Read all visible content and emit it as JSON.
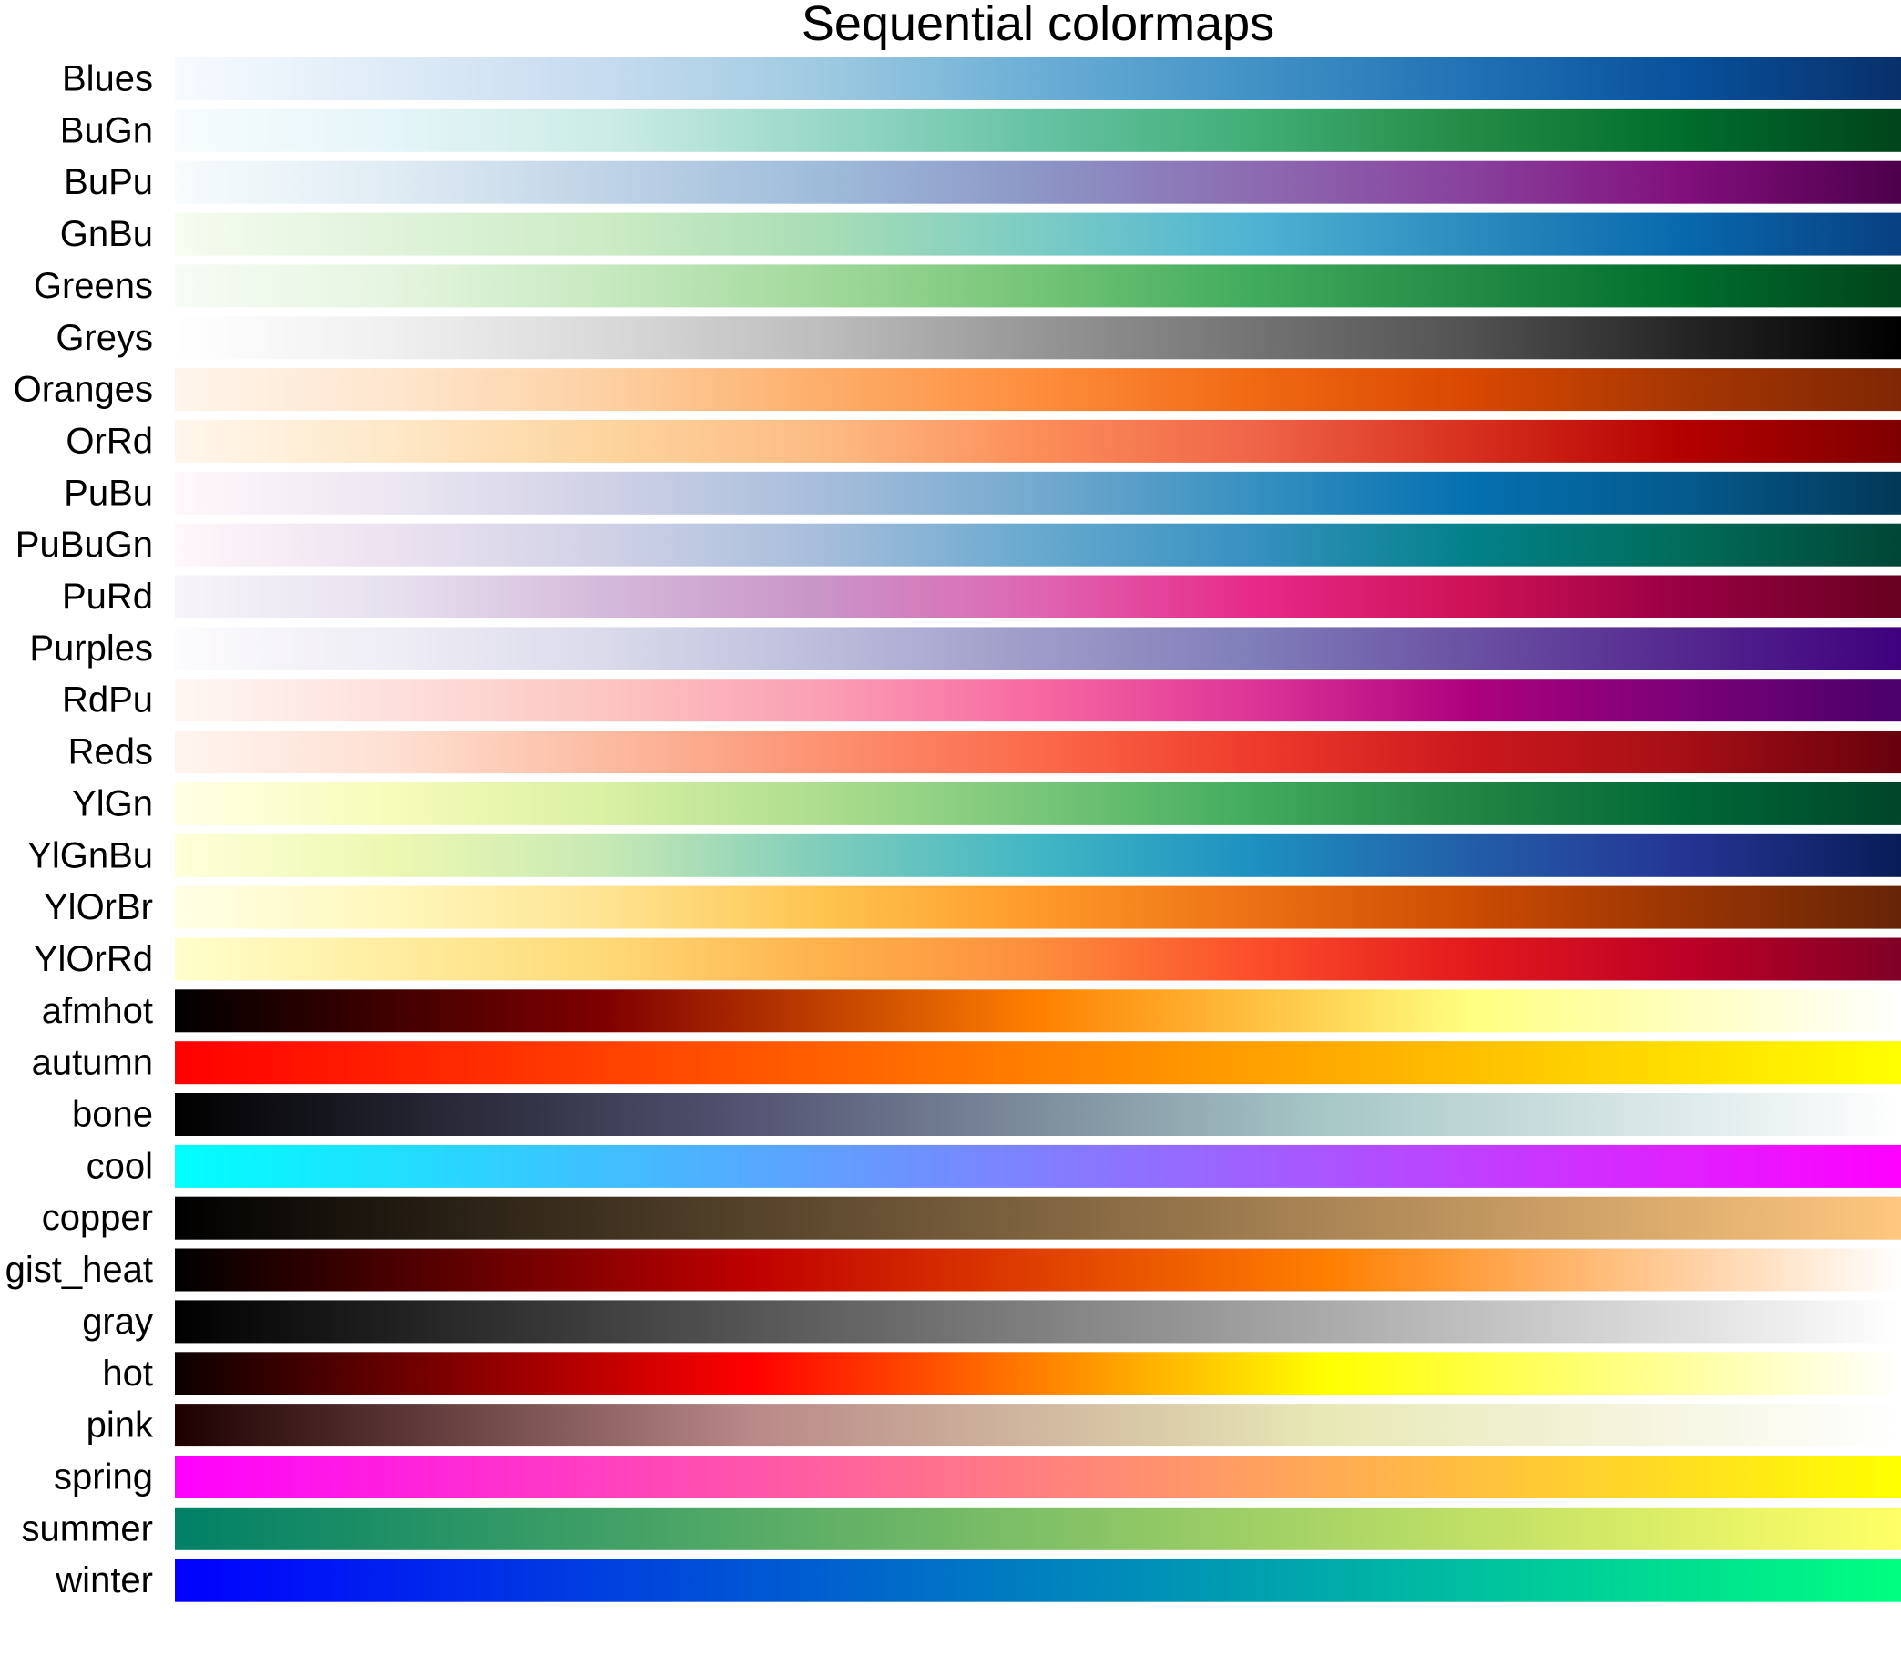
{
  "title": "Sequential colormaps",
  "chart_data": {
    "type": "heatmap",
    "title": "Sequential colormaps",
    "x_range": [
      0,
      1
    ],
    "orientation": "horizontal gradients, one row per colormap",
    "series": [
      {
        "name": "Blues",
        "stops": [
          "#f7fbff",
          "#deebf7",
          "#c6dbef",
          "#9ecae1",
          "#6baed6",
          "#4292c6",
          "#2171b5",
          "#08519c",
          "#08306b"
        ]
      },
      {
        "name": "BuGn",
        "stops": [
          "#f7fcfd",
          "#e5f5f9",
          "#ccece6",
          "#99d8c9",
          "#66c2a4",
          "#41ae76",
          "#238b45",
          "#006d2c",
          "#00441b"
        ]
      },
      {
        "name": "BuPu",
        "stops": [
          "#f7fcfd",
          "#e0ecf4",
          "#bfd3e6",
          "#9ebcda",
          "#8c96c6",
          "#8c6bb1",
          "#88419d",
          "#810f7c",
          "#4d004b"
        ]
      },
      {
        "name": "GnBu",
        "stops": [
          "#f7fcf0",
          "#e0f3db",
          "#ccebc5",
          "#a8ddb5",
          "#7bccc4",
          "#4eb3d3",
          "#2b8cbe",
          "#0868ac",
          "#084081"
        ]
      },
      {
        "name": "Greens",
        "stops": [
          "#f7fcf5",
          "#e5f5e0",
          "#c7e9c0",
          "#a1d99b",
          "#74c476",
          "#41ab5d",
          "#238b45",
          "#006d2c",
          "#00441b"
        ]
      },
      {
        "name": "Greys",
        "stops": [
          "#ffffff",
          "#f0f0f0",
          "#d9d9d9",
          "#bdbdbd",
          "#969696",
          "#737373",
          "#525252",
          "#252525",
          "#000000"
        ]
      },
      {
        "name": "Oranges",
        "stops": [
          "#fff5eb",
          "#fee6ce",
          "#fdd0a2",
          "#fdae6b",
          "#fd8d3c",
          "#f16913",
          "#d94801",
          "#a63603",
          "#7f2704"
        ]
      },
      {
        "name": "OrRd",
        "stops": [
          "#fff7ec",
          "#fee8c8",
          "#fdd49e",
          "#fdbb84",
          "#fc8d59",
          "#ef6548",
          "#d7301f",
          "#b30000",
          "#7f0000"
        ]
      },
      {
        "name": "PuBu",
        "stops": [
          "#fff7fb",
          "#ece7f2",
          "#d0d1e6",
          "#a6bddb",
          "#74a9cf",
          "#3690c0",
          "#0570b0",
          "#045a8d",
          "#023858"
        ]
      },
      {
        "name": "PuBuGn",
        "stops": [
          "#fff7fb",
          "#ece2f0",
          "#d0d1e6",
          "#a6bddb",
          "#67a9cf",
          "#3690c0",
          "#02818a",
          "#016c59",
          "#014636"
        ]
      },
      {
        "name": "PuRd",
        "stops": [
          "#f7f4f9",
          "#e7e1ef",
          "#d4b9da",
          "#c994c7",
          "#df65b0",
          "#e7298a",
          "#ce1256",
          "#980043",
          "#67001f"
        ]
      },
      {
        "name": "Purples",
        "stops": [
          "#fcfbfd",
          "#efedf5",
          "#dadaeb",
          "#bcbddc",
          "#9e9ac8",
          "#807dba",
          "#6a51a3",
          "#54278f",
          "#3f007d"
        ]
      },
      {
        "name": "RdPu",
        "stops": [
          "#fff7f3",
          "#fde0dd",
          "#fcc5c0",
          "#fa9fb5",
          "#f768a1",
          "#dd3497",
          "#ae017e",
          "#7a0177",
          "#49006a"
        ]
      },
      {
        "name": "Reds",
        "stops": [
          "#fff5f0",
          "#fee0d2",
          "#fcbba1",
          "#fc9272",
          "#fb6a4a",
          "#ef3b2c",
          "#cb181d",
          "#a50f15",
          "#67000d"
        ]
      },
      {
        "name": "YlGn",
        "stops": [
          "#ffffe5",
          "#f7fcb9",
          "#d9f0a3",
          "#addd8e",
          "#78c679",
          "#41ab5d",
          "#238443",
          "#006837",
          "#004529"
        ]
      },
      {
        "name": "YlGnBu",
        "stops": [
          "#ffffd9",
          "#edf8b1",
          "#c7e9b4",
          "#7fcdbb",
          "#41b6c4",
          "#1d91c0",
          "#225ea8",
          "#253494",
          "#081d58"
        ]
      },
      {
        "name": "YlOrBr",
        "stops": [
          "#ffffe5",
          "#fff7bc",
          "#fee391",
          "#fec44f",
          "#fe9929",
          "#ec7014",
          "#cc4c02",
          "#993404",
          "#662506"
        ]
      },
      {
        "name": "YlOrRd",
        "stops": [
          "#ffffcc",
          "#ffeda0",
          "#fed976",
          "#feb24c",
          "#fd8d3c",
          "#fc4e2a",
          "#e31a1c",
          "#bd0026",
          "#800026"
        ]
      },
      {
        "name": "afmhot",
        "stops": [
          "#000000",
          "#800000",
          "#ff8000",
          "#ffff80",
          "#ffffff"
        ]
      },
      {
        "name": "autumn",
        "stops": [
          "#ff0000",
          "#ffff00"
        ]
      },
      {
        "name": "bone",
        "stops": [
          "#000000",
          "#545474",
          "#a7c7c7",
          "#ffffff"
        ]
      },
      {
        "name": "cool",
        "stops": [
          "#00ffff",
          "#ff00ff"
        ]
      },
      {
        "name": "copper",
        "stops": [
          "#000000",
          "#ffc77f"
        ]
      },
      {
        "name": "gist_heat",
        "stops": [
          "#000000",
          "#bf0000",
          "#ff7f00",
          "#ffffff"
        ]
      },
      {
        "name": "gray",
        "stops": [
          "#000000",
          "#ffffff"
        ]
      },
      {
        "name": "hot",
        "stops": [
          "#0b0000",
          "#ff0000",
          "#ffff00",
          "#ffffff"
        ]
      },
      {
        "name": "pink",
        "stops": [
          "#1e0000",
          "#b98888",
          "#e8e8b6",
          "#ffffff"
        ]
      },
      {
        "name": "spring",
        "stops": [
          "#ff00ff",
          "#ffff00"
        ]
      },
      {
        "name": "summer",
        "stops": [
          "#008066",
          "#ffff66"
        ]
      },
      {
        "name": "winter",
        "stops": [
          "#0000ff",
          "#00ff80"
        ]
      }
    ]
  }
}
